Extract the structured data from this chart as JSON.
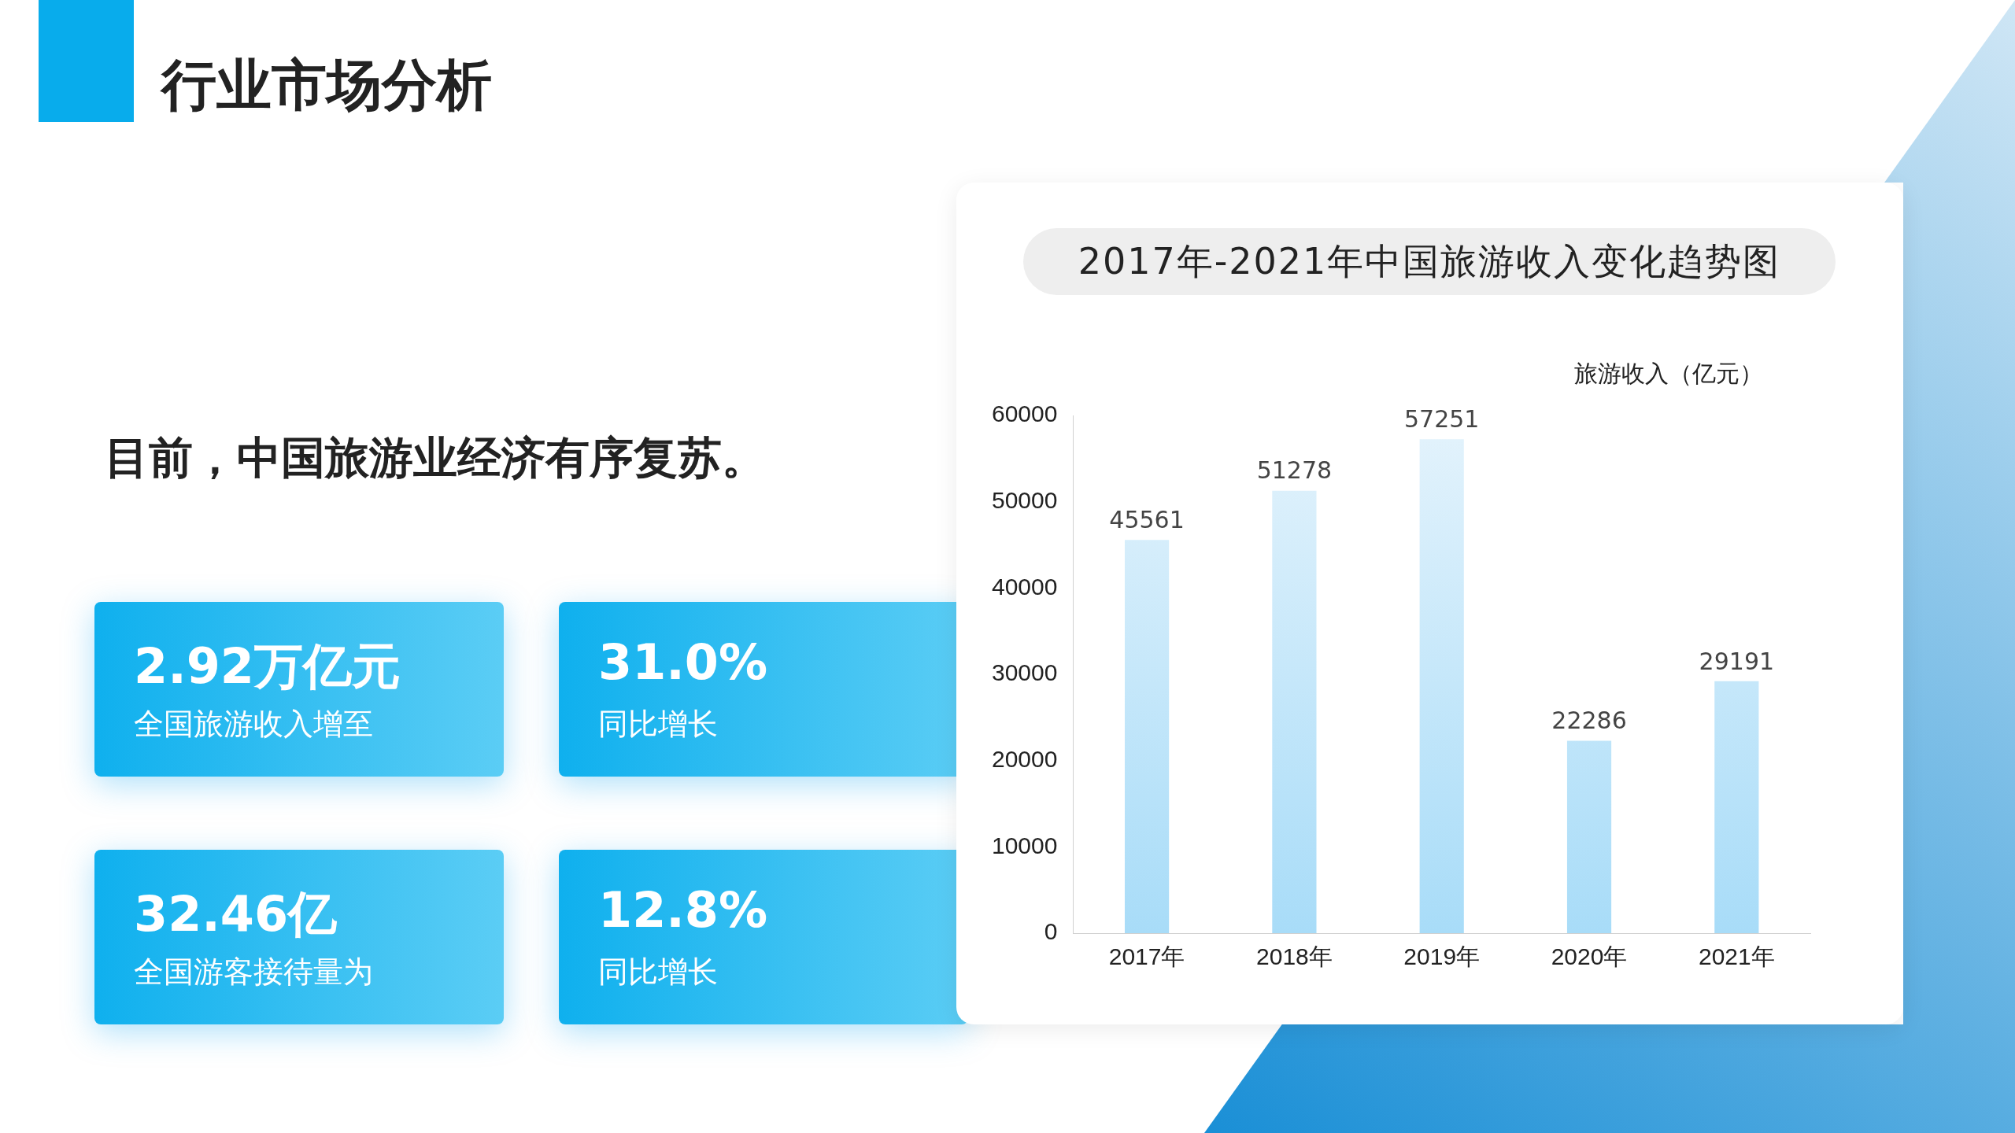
{
  "chart_data": [
    {
      "type": "other",
      "title": "行业市场分析",
      "subtitle": "目前，中国旅游业经济有序复苏。",
      "annotations": [
        "2.92万亿元",
        "全国旅游收入增至",
        "31.0%",
        "同比增长",
        "32.46亿",
        "全国游客接待量为",
        "12.8%",
        "同比增长"
      ]
    },
    {
      "type": "bar",
      "title": "2017年-2021年中国旅游收入变化趋势图",
      "ylabel": "旅游收入（亿元）",
      "categories": [
        "2017年",
        "2018年",
        "2019年",
        "2020年",
        "2021年"
      ],
      "values": [
        45561,
        51278,
        57251,
        22286,
        29191
      ],
      "color": "#a8dcf8",
      "ylim": [
        0,
        60000
      ],
      "yticks": [
        0,
        10000,
        20000,
        30000,
        40000,
        50000,
        60000
      ],
      "data_labels": true,
      "grid": false,
      "legend": false
    }
  ]
}
